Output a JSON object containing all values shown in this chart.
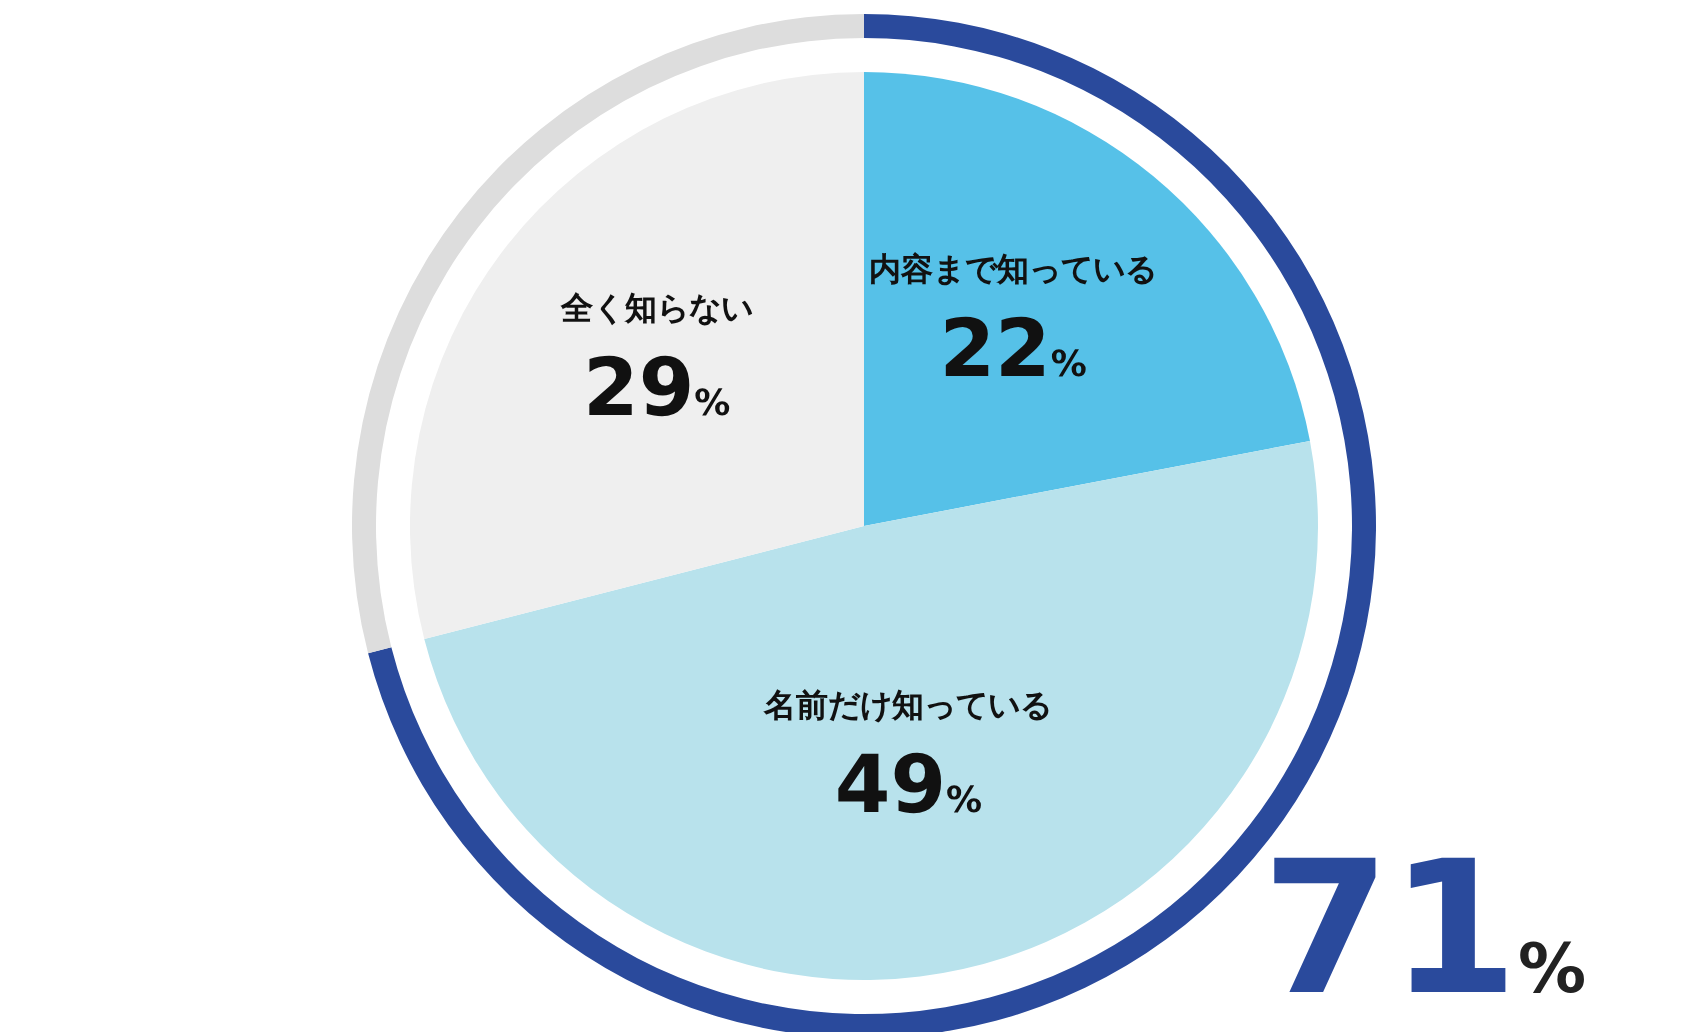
{
  "chart_data": [
    {
      "type": "pie",
      "categories": [
        "内容まで知っている",
        "名前だけ知っている",
        "全く知らない"
      ],
      "values": [
        22,
        49,
        29
      ],
      "colors": [
        "#56c1e8",
        "#b8e2ec",
        "#efefef"
      ],
      "value_labels": [
        "22%",
        "49%",
        "29%"
      ]
    },
    {
      "type": "donut",
      "categories": [
        null,
        null
      ],
      "values": [
        71,
        29
      ],
      "colors": [
        "#2a4a9c",
        "#dddddd"
      ],
      "value_labels": [
        "71%",
        null
      ]
    }
  ]
}
